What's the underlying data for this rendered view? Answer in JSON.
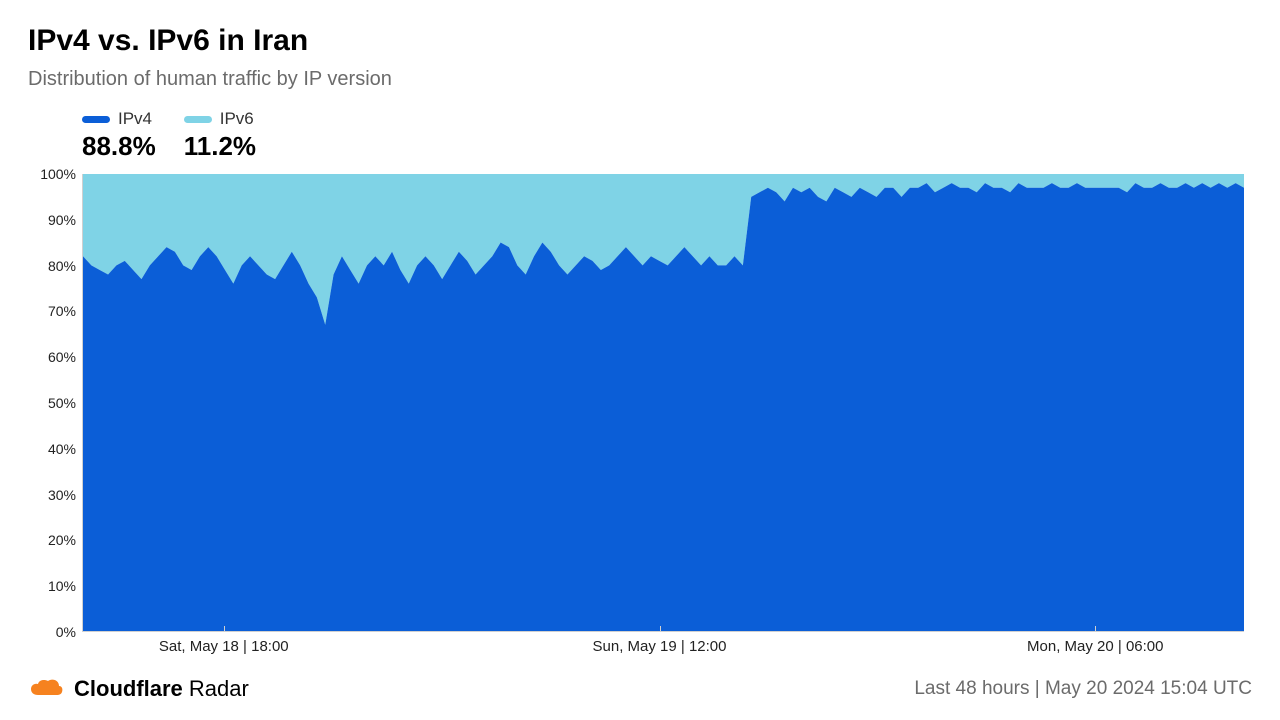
{
  "title": "IPv4 vs. IPv6 in Iran",
  "subtitle": "Distribution of human traffic by IP version",
  "chart": {
    "type": "stacked-area",
    "background_color": "#ffffff",
    "ylim": [
      0,
      100
    ],
    "ytick_step": 10,
    "ytick_suffix": "%",
    "axis_color": "#d0d0d0",
    "axis_label_color": "#222222",
    "axis_fontsize": 14,
    "series": [
      {
        "key": "ipv4",
        "label": "IPv4",
        "color": "#0b5ed7",
        "summary_value": "88.8%"
      },
      {
        "key": "ipv6",
        "label": "IPv6",
        "color": "#7fd3e6",
        "summary_value": "11.2%"
      }
    ],
    "x_ticks": [
      {
        "pos": 0.122,
        "label": "Sat, May 18 | 18:00"
      },
      {
        "pos": 0.497,
        "label": "Sun, May 19 | 12:00"
      },
      {
        "pos": 0.872,
        "label": "Mon, May 20 | 06:00"
      }
    ],
    "ipv4_values": [
      82,
      80,
      79,
      78,
      80,
      81,
      79,
      77,
      80,
      82,
      84,
      83,
      80,
      79,
      82,
      84,
      82,
      79,
      76,
      80,
      82,
      80,
      78,
      77,
      80,
      83,
      80,
      76,
      73,
      67,
      78,
      82,
      79,
      76,
      80,
      82,
      80,
      83,
      79,
      76,
      80,
      82,
      80,
      77,
      80,
      83,
      81,
      78,
      80,
      82,
      85,
      84,
      80,
      78,
      82,
      85,
      83,
      80,
      78,
      80,
      82,
      81,
      79,
      80,
      82,
      84,
      82,
      80,
      82,
      81,
      80,
      82,
      84,
      82,
      80,
      82,
      80,
      80,
      82,
      80,
      95,
      96,
      97,
      96,
      94,
      97,
      96,
      97,
      95,
      94,
      97,
      96,
      95,
      97,
      96,
      95,
      97,
      97,
      95,
      97,
      97,
      98,
      96,
      97,
      98,
      97,
      97,
      96,
      98,
      97,
      97,
      96,
      98,
      97,
      97,
      97,
      98,
      97,
      97,
      98,
      97,
      97,
      97,
      97,
      97,
      96,
      98,
      97,
      97,
      98,
      97,
      97,
      98,
      97,
      98,
      97,
      98,
      97,
      98,
      97
    ],
    "legend_swatch_width": 28,
    "legend_swatch_height": 7,
    "legend_label_fontsize": 17,
    "legend_value_fontsize": 26
  },
  "brand": {
    "name_bold": "Cloudflare",
    "name_light": "Radar",
    "icon_color": "#f6821f"
  },
  "footer_timestamp": "Last 48 hours | May 20 2024 15:04 UTC"
}
